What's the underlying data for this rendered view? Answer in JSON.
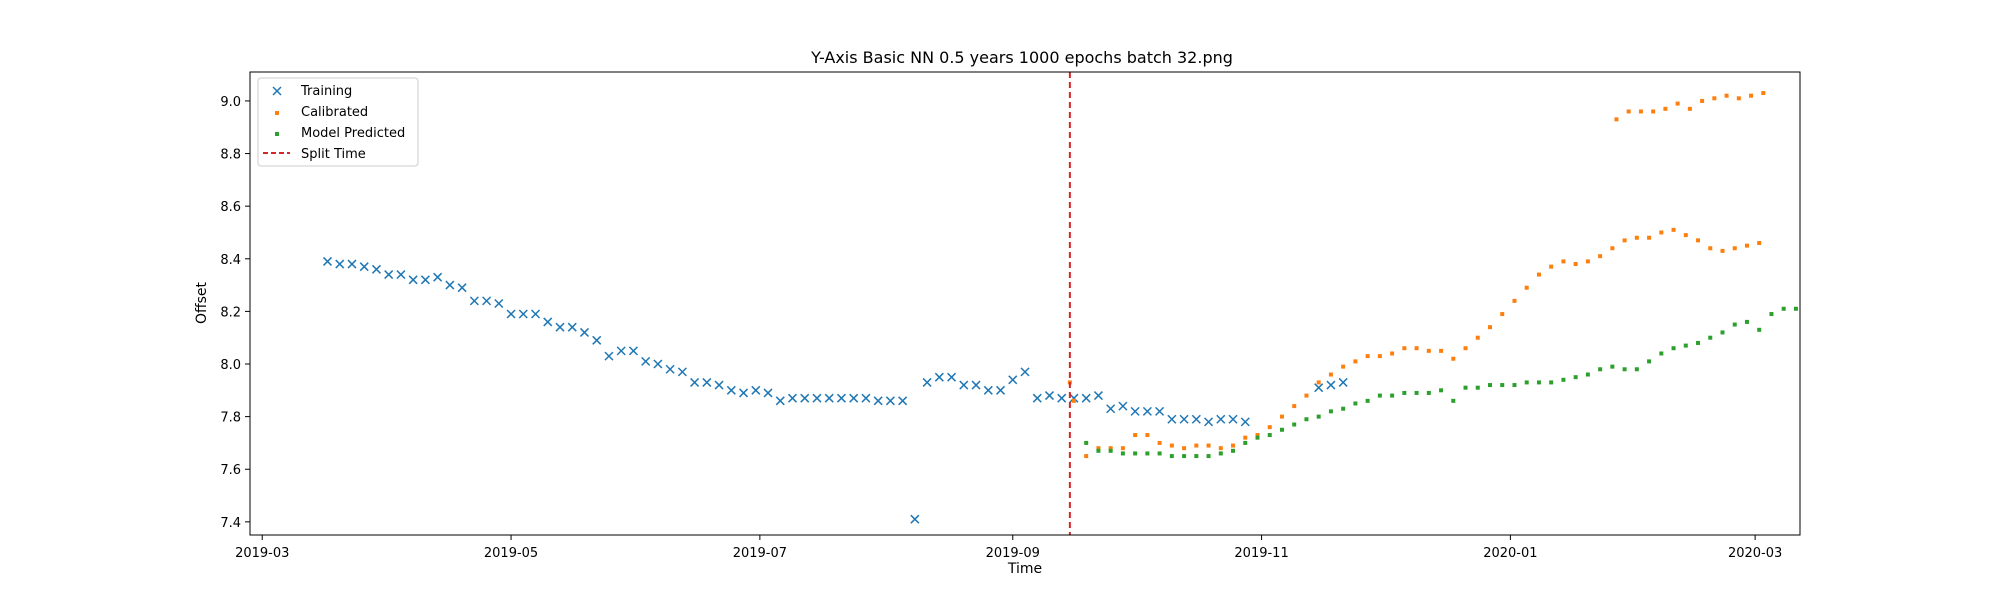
{
  "chart_data": {
    "type": "scatter",
    "title": "Y-Axis Basic NN 0.5 years 1000 epochs batch 32.png",
    "xlabel": "Time",
    "ylabel": "Offset",
    "xlim": [
      "2019-02-26",
      "2020-03-12"
    ],
    "ylim": [
      7.35,
      9.11
    ],
    "x_ticks": [
      "2019-03",
      "2019-05",
      "2019-07",
      "2019-09",
      "2019-11",
      "2020-01",
      "2020-03"
    ],
    "y_ticks": [
      "7.4",
      "7.6",
      "7.8",
      "8.0",
      "8.2",
      "8.4",
      "8.6",
      "8.8",
      "9.0"
    ],
    "grid": false,
    "legend_position": "upper-left",
    "split_time": "2019-09-15",
    "colors": {
      "training": "#1f77b4",
      "calibrated": "#ff7f0e",
      "predicted": "#2ca02c",
      "split": "#d62728"
    },
    "series": [
      {
        "name": "Training",
        "marker": "x",
        "points": [
          [
            "2019-03-17",
            8.39
          ],
          [
            "2019-03-20",
            8.38
          ],
          [
            "2019-03-23",
            8.38
          ],
          [
            "2019-03-26",
            8.37
          ],
          [
            "2019-03-29",
            8.36
          ],
          [
            "2019-04-01",
            8.34
          ],
          [
            "2019-04-04",
            8.34
          ],
          [
            "2019-04-07",
            8.32
          ],
          [
            "2019-04-10",
            8.32
          ],
          [
            "2019-04-13",
            8.33
          ],
          [
            "2019-04-16",
            8.3
          ],
          [
            "2019-04-19",
            8.29
          ],
          [
            "2019-04-22",
            8.24
          ],
          [
            "2019-04-25",
            8.24
          ],
          [
            "2019-04-28",
            8.23
          ],
          [
            "2019-05-01",
            8.19
          ],
          [
            "2019-05-04",
            8.19
          ],
          [
            "2019-05-07",
            8.19
          ],
          [
            "2019-05-10",
            8.16
          ],
          [
            "2019-05-13",
            8.14
          ],
          [
            "2019-05-16",
            8.14
          ],
          [
            "2019-05-19",
            8.12
          ],
          [
            "2019-05-22",
            8.09
          ],
          [
            "2019-05-25",
            8.03
          ],
          [
            "2019-05-28",
            8.05
          ],
          [
            "2019-05-31",
            8.05
          ],
          [
            "2019-06-03",
            8.01
          ],
          [
            "2019-06-06",
            8.0
          ],
          [
            "2019-06-09",
            7.98
          ],
          [
            "2019-06-12",
            7.97
          ],
          [
            "2019-06-15",
            7.93
          ],
          [
            "2019-06-18",
            7.93
          ],
          [
            "2019-06-21",
            7.92
          ],
          [
            "2019-06-24",
            7.9
          ],
          [
            "2019-06-27",
            7.89
          ],
          [
            "2019-06-30",
            7.9
          ],
          [
            "2019-07-03",
            7.89
          ],
          [
            "2019-07-06",
            7.86
          ],
          [
            "2019-07-09",
            7.87
          ],
          [
            "2019-07-12",
            7.87
          ],
          [
            "2019-07-15",
            7.87
          ],
          [
            "2019-07-18",
            7.87
          ],
          [
            "2019-07-21",
            7.87
          ],
          [
            "2019-07-24",
            7.87
          ],
          [
            "2019-07-27",
            7.87
          ],
          [
            "2019-07-30",
            7.86
          ],
          [
            "2019-08-02",
            7.86
          ],
          [
            "2019-08-05",
            7.86
          ],
          [
            "2019-08-08",
            7.41
          ],
          [
            "2019-08-11",
            7.93
          ],
          [
            "2019-08-14",
            7.95
          ],
          [
            "2019-08-17",
            7.95
          ],
          [
            "2019-08-20",
            7.92
          ],
          [
            "2019-08-23",
            7.92
          ],
          [
            "2019-08-26",
            7.9
          ],
          [
            "2019-08-29",
            7.9
          ],
          [
            "2019-09-01",
            7.94
          ],
          [
            "2019-09-04",
            7.97
          ],
          [
            "2019-09-07",
            7.87
          ],
          [
            "2019-09-10",
            7.88
          ],
          [
            "2019-09-13",
            7.87
          ],
          [
            "2019-09-16",
            7.87
          ],
          [
            "2019-09-19",
            7.87
          ],
          [
            "2019-09-22",
            7.88
          ],
          [
            "2019-09-25",
            7.83
          ],
          [
            "2019-09-28",
            7.84
          ],
          [
            "2019-10-01",
            7.82
          ],
          [
            "2019-10-04",
            7.82
          ],
          [
            "2019-10-07",
            7.82
          ],
          [
            "2019-10-10",
            7.79
          ],
          [
            "2019-10-13",
            7.79
          ],
          [
            "2019-10-16",
            7.79
          ],
          [
            "2019-10-19",
            7.78
          ],
          [
            "2019-10-22",
            7.79
          ],
          [
            "2019-10-25",
            7.79
          ],
          [
            "2019-10-28",
            7.78
          ],
          [
            "2019-11-15",
            7.91
          ],
          [
            "2019-11-18",
            7.92
          ],
          [
            "2019-11-21",
            7.93
          ]
        ]
      },
      {
        "name": "Calibrated",
        "marker": "s",
        "points": [
          [
            "2019-09-15",
            7.93
          ],
          [
            "2019-09-16",
            7.86
          ],
          [
            "2019-09-19",
            7.65
          ],
          [
            "2019-09-22",
            7.68
          ],
          [
            "2019-09-25",
            7.68
          ],
          [
            "2019-09-28",
            7.68
          ],
          [
            "2019-10-01",
            7.73
          ],
          [
            "2019-10-04",
            7.73
          ],
          [
            "2019-10-07",
            7.7
          ],
          [
            "2019-10-10",
            7.69
          ],
          [
            "2019-10-13",
            7.68
          ],
          [
            "2019-10-16",
            7.69
          ],
          [
            "2019-10-19",
            7.69
          ],
          [
            "2019-10-22",
            7.68
          ],
          [
            "2019-10-25",
            7.69
          ],
          [
            "2019-10-28",
            7.72
          ],
          [
            "2019-10-31",
            7.73
          ],
          [
            "2019-11-03",
            7.76
          ],
          [
            "2019-11-06",
            7.8
          ],
          [
            "2019-11-09",
            7.84
          ],
          [
            "2019-11-12",
            7.88
          ],
          [
            "2019-11-15",
            7.93
          ],
          [
            "2019-11-18",
            7.96
          ],
          [
            "2019-11-21",
            7.99
          ],
          [
            "2019-11-24",
            8.01
          ],
          [
            "2019-11-27",
            8.03
          ],
          [
            "2019-11-30",
            8.03
          ],
          [
            "2019-12-03",
            8.04
          ],
          [
            "2019-12-06",
            8.06
          ],
          [
            "2019-12-09",
            8.06
          ],
          [
            "2019-12-12",
            8.05
          ],
          [
            "2019-12-15",
            8.05
          ],
          [
            "2019-12-18",
            8.02
          ],
          [
            "2019-12-21",
            8.06
          ],
          [
            "2019-12-24",
            8.1
          ],
          [
            "2019-12-27",
            8.14
          ],
          [
            "2019-12-30",
            8.19
          ],
          [
            "2020-01-02",
            8.24
          ],
          [
            "2020-01-05",
            8.29
          ],
          [
            "2020-01-08",
            8.34
          ],
          [
            "2020-01-11",
            8.37
          ],
          [
            "2020-01-14",
            8.39
          ],
          [
            "2020-01-17",
            8.38
          ],
          [
            "2020-01-20",
            8.39
          ],
          [
            "2020-01-23",
            8.41
          ],
          [
            "2020-01-26",
            8.44
          ],
          [
            "2020-01-29",
            8.47
          ],
          [
            "2020-02-01",
            8.48
          ],
          [
            "2020-02-04",
            8.48
          ],
          [
            "2020-02-07",
            8.5
          ],
          [
            "2020-02-10",
            8.51
          ],
          [
            "2020-02-13",
            8.49
          ],
          [
            "2020-02-16",
            8.47
          ],
          [
            "2020-02-19",
            8.44
          ],
          [
            "2020-02-22",
            8.43
          ],
          [
            "2020-02-25",
            8.44
          ],
          [
            "2020-02-28",
            8.45
          ],
          [
            "2020-03-02",
            8.46
          ],
          [
            "2020-01-27",
            8.93
          ],
          [
            "2020-01-30",
            8.96
          ],
          [
            "2020-02-02",
            8.96
          ],
          [
            "2020-02-05",
            8.96
          ],
          [
            "2020-02-08",
            8.97
          ],
          [
            "2020-02-11",
            8.99
          ],
          [
            "2020-02-14",
            8.97
          ],
          [
            "2020-02-17",
            9.0
          ],
          [
            "2020-02-20",
            9.01
          ],
          [
            "2020-02-23",
            9.02
          ],
          [
            "2020-02-26",
            9.01
          ],
          [
            "2020-02-29",
            9.02
          ],
          [
            "2020-03-03",
            9.03
          ]
        ]
      },
      {
        "name": "Model Predicted",
        "marker": "s",
        "points": [
          [
            "2019-09-19",
            7.7
          ],
          [
            "2019-09-22",
            7.67
          ],
          [
            "2019-09-25",
            7.67
          ],
          [
            "2019-09-28",
            7.66
          ],
          [
            "2019-10-01",
            7.66
          ],
          [
            "2019-10-04",
            7.66
          ],
          [
            "2019-10-07",
            7.66
          ],
          [
            "2019-10-10",
            7.65
          ],
          [
            "2019-10-13",
            7.65
          ],
          [
            "2019-10-16",
            7.65
          ],
          [
            "2019-10-19",
            7.65
          ],
          [
            "2019-10-22",
            7.66
          ],
          [
            "2019-10-25",
            7.67
          ],
          [
            "2019-10-28",
            7.7
          ],
          [
            "2019-10-31",
            7.72
          ],
          [
            "2019-11-03",
            7.73
          ],
          [
            "2019-11-06",
            7.75
          ],
          [
            "2019-11-09",
            7.77
          ],
          [
            "2019-11-12",
            7.79
          ],
          [
            "2019-11-15",
            7.8
          ],
          [
            "2019-11-18",
            7.82
          ],
          [
            "2019-11-21",
            7.83
          ],
          [
            "2019-11-24",
            7.85
          ],
          [
            "2019-11-27",
            7.86
          ],
          [
            "2019-11-30",
            7.88
          ],
          [
            "2019-12-03",
            7.88
          ],
          [
            "2019-12-06",
            7.89
          ],
          [
            "2019-12-09",
            7.89
          ],
          [
            "2019-12-12",
            7.89
          ],
          [
            "2019-12-15",
            7.9
          ],
          [
            "2019-12-18",
            7.86
          ],
          [
            "2019-12-21",
            7.91
          ],
          [
            "2019-12-24",
            7.91
          ],
          [
            "2019-12-27",
            7.92
          ],
          [
            "2019-12-30",
            7.92
          ],
          [
            "2020-01-02",
            7.92
          ],
          [
            "2020-01-05",
            7.93
          ],
          [
            "2020-01-08",
            7.93
          ],
          [
            "2020-01-11",
            7.93
          ],
          [
            "2020-01-14",
            7.94
          ],
          [
            "2020-01-17",
            7.95
          ],
          [
            "2020-01-20",
            7.96
          ],
          [
            "2020-01-23",
            7.98
          ],
          [
            "2020-01-26",
            7.99
          ],
          [
            "2020-01-29",
            7.98
          ],
          [
            "2020-02-01",
            7.98
          ],
          [
            "2020-02-04",
            8.01
          ],
          [
            "2020-02-07",
            8.04
          ],
          [
            "2020-02-10",
            8.06
          ],
          [
            "2020-02-13",
            8.07
          ],
          [
            "2020-02-16",
            8.08
          ],
          [
            "2020-02-19",
            8.1
          ],
          [
            "2020-02-22",
            8.12
          ],
          [
            "2020-02-25",
            8.15
          ],
          [
            "2020-02-28",
            8.16
          ],
          [
            "2020-03-02",
            8.13
          ],
          [
            "2020-03-05",
            8.19
          ],
          [
            "2020-03-08",
            8.21
          ],
          [
            "2020-03-11",
            8.21
          ]
        ]
      }
    ]
  }
}
